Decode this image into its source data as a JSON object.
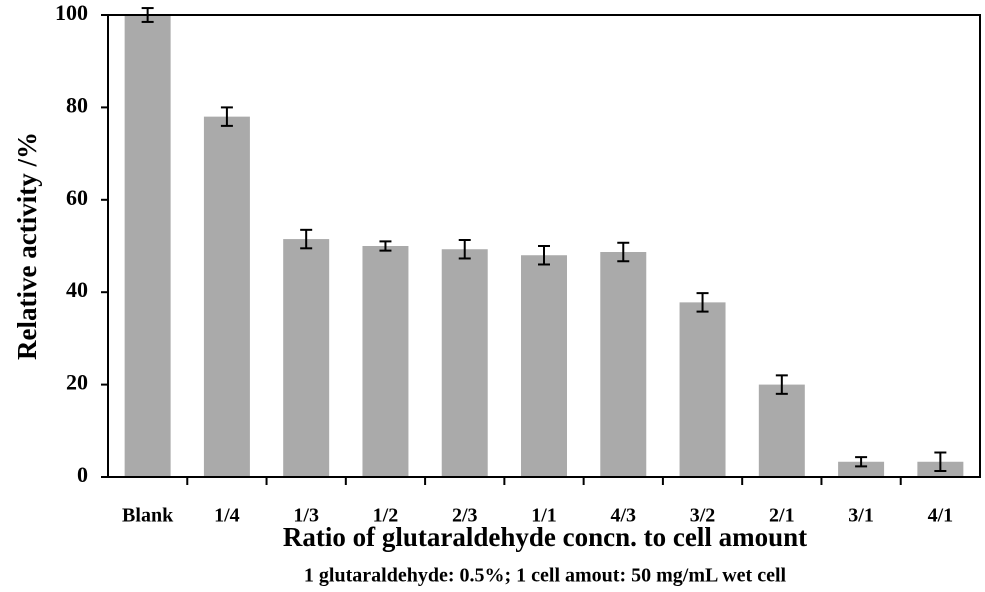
{
  "chart_data": {
    "type": "bar",
    "y_label": "Relative activity /%",
    "x_label": "Ratio of glutaraldehyde concn. to cell amount",
    "note": "1 glutaraldehyde: 0.5%; 1 cell amout: 50 mg/mL wet cell",
    "categories": [
      "Blank",
      "1/4",
      "1/3",
      "1/2",
      "2/3",
      "1/1",
      "4/3",
      "3/2",
      "2/1",
      "3/1",
      "4/1"
    ],
    "values": [
      100,
      78,
      51.5,
      50,
      49.3,
      48,
      48.7,
      37.8,
      20,
      3.3,
      3.3
    ],
    "errors": [
      1.5,
      2,
      2,
      1,
      2,
      2,
      2,
      2,
      2,
      1,
      2
    ],
    "color": "#aaaaaa",
    "ylim": [
      0,
      100
    ],
    "yticks": [
      0,
      20,
      40,
      60,
      80,
      100
    ],
    "grid": false
  }
}
